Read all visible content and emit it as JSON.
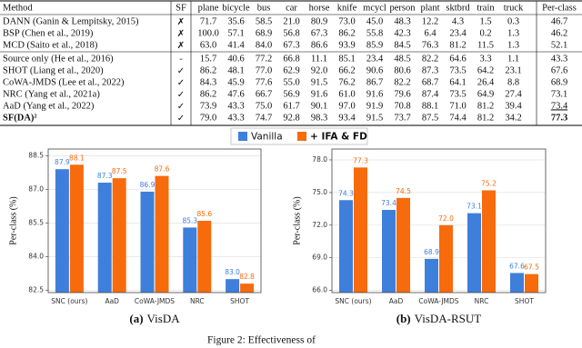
{
  "table": {
    "header": [
      "Method",
      "SF",
      "plane",
      "bicycle",
      "bus",
      "car",
      "horse",
      "knife",
      "mcycl",
      "person",
      "plant",
      "sktbrd",
      "train",
      "truck",
      "Per-class"
    ],
    "groups": [
      [
        [
          "DANN (Ganin & Lempitsky, 2015)",
          "✗",
          "71.7",
          "35.6",
          "58.5",
          "21.0",
          "80.9",
          "73.0",
          "45.0",
          "48.3",
          "12.2",
          "4.3",
          "1.5",
          "0.3",
          "46.7"
        ],
        [
          "BSP (Chen et al., 2019)",
          "✗",
          "100.0",
          "57.1",
          "68.9",
          "56.8",
          "67.3",
          "86.2",
          "55.8",
          "42.3",
          "6.4",
          "23.4",
          "0.2",
          "1.3",
          "46.2"
        ],
        [
          "MCD (Saito et al., 2018)",
          "✗",
          "63.0",
          "41.4",
          "84.0",
          "67.3",
          "86.6",
          "93.9",
          "85.9",
          "84.5",
          "76.3",
          "81.2",
          "11.5",
          "1.3",
          "52.1"
        ]
      ],
      [
        [
          "Source only (He et al., 2016)",
          "-",
          "15.7",
          "40.6",
          "77.2",
          "66.8",
          "11.1",
          "85.1",
          "23.4",
          "48.5",
          "82.2",
          "64.6",
          "3.3",
          "1.1",
          "43.3"
        ],
        [
          "SHOT (Liang et al., 2020)",
          "✓",
          "86.2",
          "48.1",
          "77.0",
          "62.9",
          "92.0",
          "66.2",
          "90.6",
          "80.6",
          "87.3",
          "73.5",
          "64.2",
          "23.1",
          "67.6"
        ],
        [
          "CoWA-JMDS (Lee et al., 2022)",
          "✓",
          "84.3",
          "45.9",
          "77.6",
          "55.0",
          "91.5",
          "76.2",
          "86.7",
          "82.2",
          "68.7",
          "64.1",
          "26.4",
          "8.8",
          "68.9"
        ],
        [
          "NRC (Yang et al., 2021a)",
          "✓",
          "86.2",
          "47.6",
          "66.7",
          "56.9",
          "91.6",
          "61.0",
          "91.6",
          "79.6",
          "87.4",
          "73.5",
          "64.9",
          "27.4",
          "73.1"
        ],
        [
          "AaD (Yang et al., 2022)",
          "✓",
          "73.9",
          "43.3",
          "75.0",
          "61.7",
          "90.1",
          "97.0",
          "91.9",
          "70.8",
          "88.1",
          "71.0",
          "81.2",
          "39.4",
          "73.4"
        ],
        [
          "SF(DA)²",
          "✓",
          "79.0",
          "43.3",
          "74.7",
          "92.8",
          "98.3",
          "93.4",
          "91.5",
          "73.7",
          "87.5",
          "74.4",
          "81.2",
          "34.2",
          "77.3"
        ]
      ]
    ]
  },
  "chart_data": [
    {
      "type": "bar",
      "caption_label": "(a)",
      "caption": "VisDA",
      "y_label": "Per-class (%)",
      "categories": [
        "SNC (ours)",
        "AaD",
        "CoWA-JMDS",
        "NRC",
        "SHOT"
      ],
      "series": [
        {
          "name": "Vanilla",
          "color": "#3f7fdc",
          "values": [
            87.9,
            87.3,
            86.9,
            85.3,
            83.0
          ],
          "value_labels": [
            "87.9",
            "87.3",
            "86.9",
            "85.3",
            "83.0"
          ]
        },
        {
          "name": "+ IFA & FD",
          "color": "#f76b0d",
          "values": [
            88.1,
            87.5,
            87.6,
            85.6,
            82.8
          ],
          "value_labels": [
            "88.1",
            "87.5",
            "87.6",
            "85.6",
            "82.8"
          ]
        }
      ],
      "ylim": [
        82.4,
        88.8
      ],
      "yticks": [
        {
          "value": 82.5,
          "label": "82.5"
        },
        {
          "value": 84,
          "label": "84.0"
        },
        {
          "value": 85.5,
          "label": "85.5"
        },
        {
          "value": 87,
          "label": "87.0"
        },
        {
          "value": 88.5,
          "label": "88.5"
        }
      ],
      "grid": true
    },
    {
      "type": "bar",
      "caption_label": "(b)",
      "caption": "VisDA-RSUT",
      "y_label": "Per-class (%)",
      "categories": [
        "SNC (ours)",
        "AaD",
        "CoWA-JMDS",
        "NRC",
        "SHOT"
      ],
      "series": [
        {
          "color": "#3f7fdc",
          "values": [
            74.3,
            73.4,
            68.9,
            73.1,
            67.6
          ],
          "value_labels": [
            "74.3",
            "73.4",
            "68.9",
            "73.1",
            "67.6"
          ]
        },
        {
          "color": "#f76b0d",
          "values": [
            77.3,
            74.5,
            72.0,
            75.2,
            67.5
          ],
          "value_labels": [
            "77.3",
            "74.5",
            "72.0",
            "75.2",
            "67.5"
          ]
        }
      ],
      "ylim": [
        65.8,
        79.0
      ],
      "yticks": [
        {
          "value": 66,
          "label": "66.0"
        },
        {
          "value": 69,
          "label": "69.0"
        },
        {
          "value": 72,
          "label": "72.0"
        },
        {
          "value": 75,
          "label": "75.0"
        },
        {
          "value": 78,
          "label": "78.0"
        }
      ],
      "grid": true
    }
  ],
  "figure_caption": "Figure 2: Effectiveness of"
}
